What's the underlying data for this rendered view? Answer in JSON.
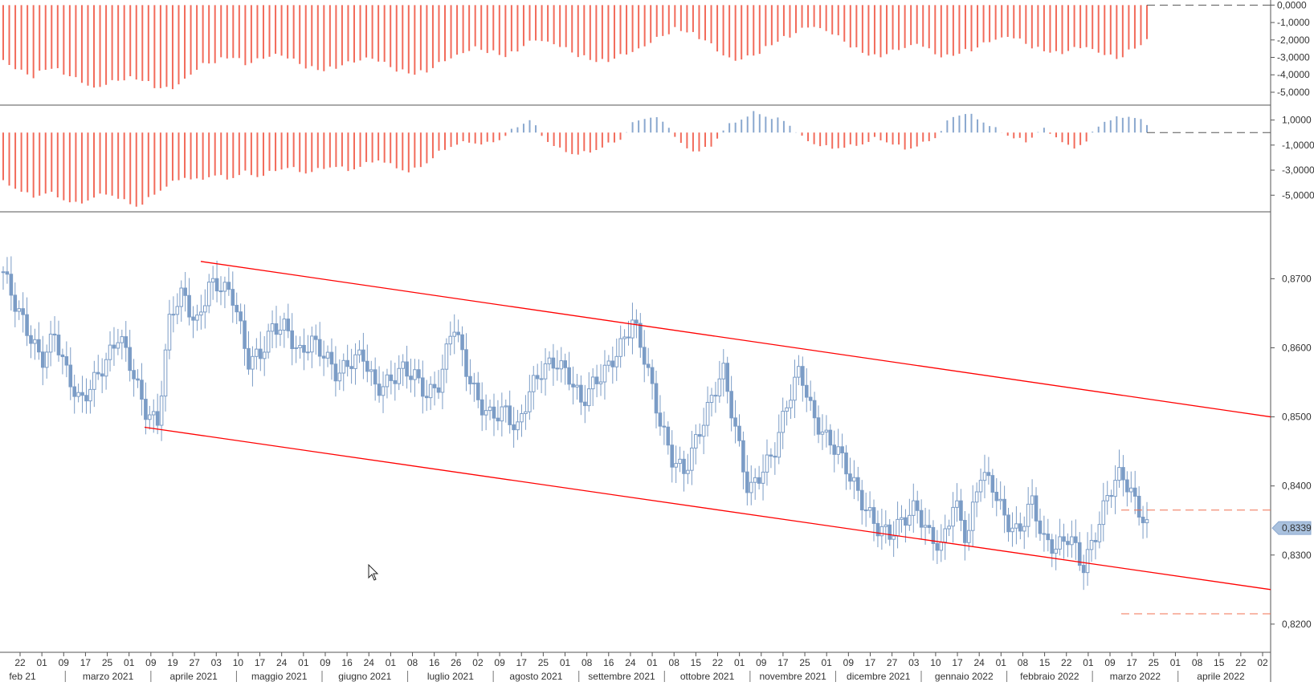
{
  "chart_data": [
    {
      "panel": "indicator-top",
      "type": "bar",
      "y_ticks": [
        "0,0000",
        "-1,0000",
        "-2,0000",
        "-3,0000",
        "-4,0000",
        "-5,0000"
      ],
      "y_tick_values": [
        0,
        -1,
        -2,
        -3,
        -4,
        -5
      ],
      "ylim": [
        -5.6,
        0.2
      ],
      "series_color": "#f26b5b",
      "baseline": 0,
      "pattern_note_values": [
        -3.2,
        -3.8,
        -4.1,
        -3.6,
        -3.9,
        -4.4,
        -4.8,
        -4.5,
        -4.2,
        -4.3,
        -4.7,
        -4.9,
        -4.2,
        -3.5,
        -3.2,
        -3.0,
        -3.4,
        -3.1,
        -2.8,
        -3.2,
        -3.6,
        -3.8,
        -3.5,
        -3.3,
        -3.0,
        -3.4,
        -3.8,
        -4.0,
        -3.7,
        -3.2,
        -2.8,
        -2.5,
        -2.7,
        -3.0,
        -2.4,
        -2.0,
        -2.2,
        -2.6,
        -3.0,
        -3.3,
        -3.1,
        -2.8,
        -2.4,
        -1.9,
        -1.4,
        -1.6,
        -2.0,
        -2.8,
        -3.2,
        -3.0,
        -2.5,
        -2.0,
        -1.6,
        -1.2,
        -1.5,
        -2.0,
        -2.6,
        -3.0,
        -2.8,
        -2.5,
        -2.2,
        -2.8,
        -3.0,
        -2.7,
        -2.4,
        -2.0,
        -1.8,
        -2.2,
        -2.6,
        -2.8,
        -2.6,
        -2.4,
        -2.8,
        -3.1,
        -2.6,
        -2.1
      ]
    },
    {
      "panel": "indicator-middle",
      "type": "bar",
      "y_ticks": [
        "1,0000",
        "-1,0000",
        "-3,0000",
        "-5,0000"
      ],
      "y_tick_values": [
        1,
        -1,
        -3,
        -5
      ],
      "ylim": [
        -6.2,
        2.0
      ],
      "baseline": 0,
      "positive_color": "#8aa8cf",
      "negative_color": "#f26b5b",
      "pattern_note_values": [
        -4.0,
        -4.6,
        -5.2,
        -4.8,
        -5.4,
        -5.8,
        -5.2,
        -4.9,
        -5.5,
        -6.0,
        -5.0,
        -4.2,
        -3.6,
        -3.9,
        -3.4,
        -3.8,
        -3.2,
        -3.6,
        -3.1,
        -2.8,
        -3.3,
        -3.0,
        -2.7,
        -3.1,
        -2.6,
        -2.2,
        -2.8,
        -3.2,
        -2.6,
        -1.6,
        -1.0,
        -0.8,
        -1.0,
        -0.6,
        0.3,
        1.0,
        -0.6,
        -1.4,
        -1.8,
        -1.6,
        -1.1,
        -0.6,
        0.9,
        1.2,
        0.8,
        -1.0,
        -1.6,
        -1.2,
        0.4,
        1.0,
        1.6,
        1.1,
        0.9,
        -0.4,
        -1.0,
        -1.3,
        -1.2,
        -1.0,
        -0.5,
        -0.9,
        -1.4,
        -1.0,
        -0.4,
        1.2,
        1.5,
        0.9,
        0.2,
        -0.4,
        -0.8,
        0.3,
        -0.4,
        -1.4,
        -0.7,
        0.8,
        1.1,
        1.3,
        0.6
      ]
    },
    {
      "panel": "price",
      "type": "candlestick",
      "y_ticks": [
        "0,8700",
        "0,8600",
        "0,8500",
        "0,8400",
        "0,8300",
        "0,8200"
      ],
      "y_tick_values": [
        0.87,
        0.86,
        0.85,
        0.84,
        0.83,
        0.82
      ],
      "ylim": [
        0.8165,
        0.8755
      ],
      "candle_color": "#7b9cc6",
      "trend_line_color": "#ff0000",
      "dashed_line_color": "#f07050",
      "last_price_label": "0,8339",
      "close_series_note": [
        0.871,
        0.866,
        0.862,
        0.858,
        0.862,
        0.856,
        0.852,
        0.855,
        0.858,
        0.862,
        0.857,
        0.851,
        0.849,
        0.865,
        0.868,
        0.863,
        0.869,
        0.869,
        0.867,
        0.858,
        0.859,
        0.863,
        0.863,
        0.859,
        0.861,
        0.859,
        0.856,
        0.858,
        0.859,
        0.854,
        0.855,
        0.857,
        0.856,
        0.853,
        0.855,
        0.864,
        0.857,
        0.852,
        0.85,
        0.851,
        0.848,
        0.854,
        0.857,
        0.858,
        0.856,
        0.852,
        0.855,
        0.857,
        0.86,
        0.864,
        0.858,
        0.85,
        0.844,
        0.842,
        0.847,
        0.852,
        0.857,
        0.848,
        0.839,
        0.842,
        0.845,
        0.852,
        0.857,
        0.85,
        0.847,
        0.845,
        0.841,
        0.837,
        0.834,
        0.833,
        0.835,
        0.837,
        0.833,
        0.831,
        0.838,
        0.832,
        0.842,
        0.84,
        0.835,
        0.833,
        0.838,
        0.832,
        0.831,
        0.833,
        0.828,
        0.833,
        0.839,
        0.842,
        0.838,
        0.834
      ]
    },
    {
      "panel": "time-axis",
      "day_ticks": [
        "22",
        "01",
        "09",
        "17",
        "25",
        "01",
        "09",
        "19",
        "27",
        "03",
        "10",
        "17",
        "24",
        "01",
        "09",
        "16",
        "24",
        "01",
        "08",
        "16",
        "26",
        "02",
        "09",
        "17",
        "25",
        "01",
        "08",
        "16",
        "24",
        "01",
        "08",
        "15",
        "22",
        "01",
        "09",
        "17",
        "25",
        "01",
        "09",
        "17",
        "27",
        "03",
        "10",
        "17",
        "24",
        "01",
        "08",
        "15",
        "22",
        "01",
        "09",
        "17",
        "25",
        "01",
        "08",
        "15",
        "22",
        "02"
      ],
      "month_labels": [
        "feb 21",
        "marzo 2021",
        "aprile 2021",
        "maggio 2021",
        "giugno 2021",
        "luglio 2021",
        "agosto 2021",
        "settembre 2021",
        "ottobre 2021",
        "novembre 2021",
        "dicembre 2021",
        "gennaio 2022",
        "febbraio 2022",
        "marzo 2022",
        "aprile 2022"
      ]
    }
  ]
}
